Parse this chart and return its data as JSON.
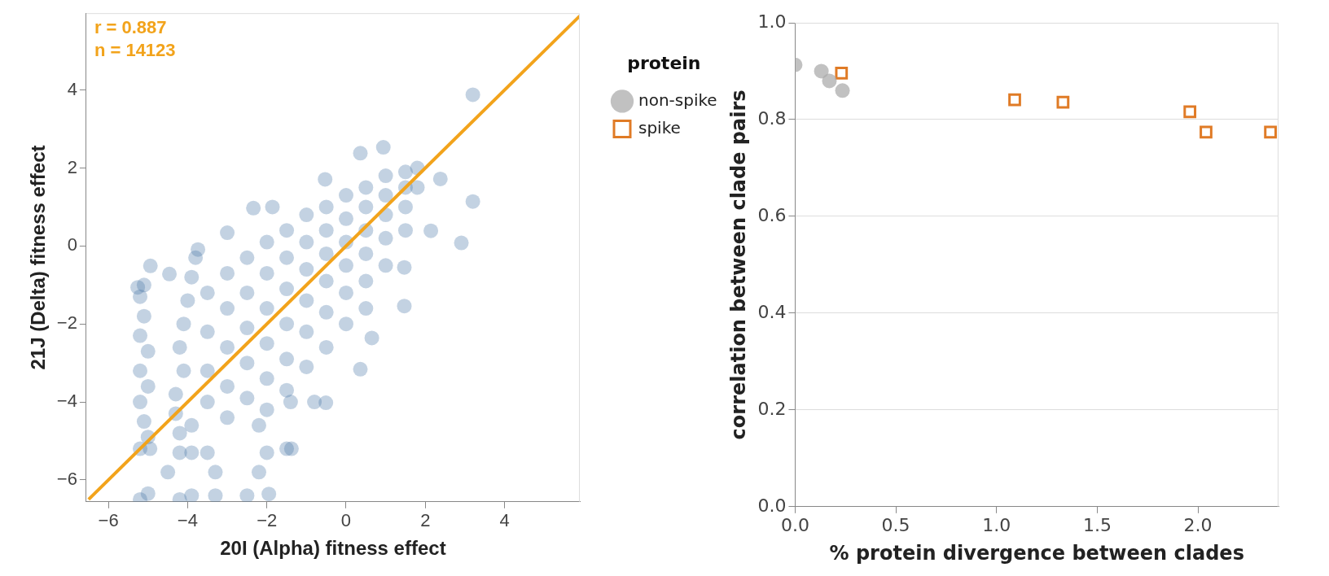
{
  "chart_data": [
    {
      "type": "scatter",
      "xlabel": "20I (Alpha) fitness effect",
      "ylabel": "21J (Delta) fitness effect",
      "annotations": [
        "r = 0.887",
        "n = 14123"
      ],
      "xlim": [
        -6.56,
        5.9
      ],
      "ylim": [
        -6.56,
        5.97
      ],
      "xticks": [
        -6,
        -4,
        -2,
        0,
        2,
        4
      ],
      "yticks": [
        -6,
        -4,
        -2,
        0,
        2,
        4
      ],
      "grid": false,
      "legend": false,
      "series": [
        {
          "marker": "circle",
          "color": "#4c78a8",
          "x": [
            -5.2,
            -5.1,
            -5.2,
            -5.0,
            -5.2,
            -5.0,
            -5.2,
            -5.1,
            -5.0,
            -5.2,
            -4.95,
            -5.1,
            -3.8,
            -3.9,
            -4.0,
            -4.1,
            -4.2,
            -4.1,
            -4.3,
            -4.3,
            -4.2,
            -4.2,
            -3.9,
            -3.5,
            -3.9,
            -3.5,
            -3.5,
            -3.5,
            -3.5,
            -3,
            -3,
            -3,
            -3,
            -3,
            -2.5,
            -2.5,
            -2.5,
            -2.5,
            -2.5,
            -2,
            -2,
            -2,
            -2,
            -2,
            -2,
            -1.5,
            -1.5,
            -1.5,
            -1.5,
            -1.5,
            -1.5,
            -1,
            -1,
            -1,
            -1,
            -1,
            -1,
            -0.5,
            -0.5,
            -0.5,
            -0.5,
            -0.5,
            -0.5,
            0,
            0,
            0,
            0,
            0,
            0,
            0.5,
            0.5,
            0.5,
            0.5,
            0.5,
            0.5,
            1,
            1,
            1,
            1,
            1,
            1.5,
            1.5,
            1.5,
            1.5,
            1.8,
            1.8,
            -5.2,
            -5.0,
            -4.5,
            -4.2,
            -3.9,
            -3.3,
            -3.3,
            -2.5,
            -2.0,
            -2.2,
            -1.4,
            -0.8,
            -1.5,
            3.2,
            0.94,
            0.36,
            -0.53,
            2.38,
            3.2,
            2.91,
            2.14,
            1.47,
            1.47,
            0.65,
            0.36,
            -0.51,
            -1.38,
            -2.2,
            -1.95,
            -4.94,
            -5.26,
            -4.46,
            -3.0,
            -2.34,
            -1.86,
            -3.74
          ],
          "values": [
            -1.3,
            -1.8,
            -2.3,
            -2.7,
            -3.2,
            -3.6,
            -4.0,
            -4.5,
            -4.9,
            -5.2,
            -5.2,
            -1.0,
            -0.3,
            -0.8,
            -1.4,
            -2.0,
            -2.6,
            -3.2,
            -3.8,
            -4.3,
            -4.8,
            -5.3,
            -5.3,
            -5.3,
            -4.6,
            -1.2,
            -2.2,
            -3.2,
            -4.0,
            -0.7,
            -1.6,
            -2.6,
            -3.6,
            -4.4,
            -0.3,
            -1.2,
            -2.1,
            -3.0,
            -3.9,
            0.1,
            -0.7,
            -1.6,
            -2.5,
            -3.4,
            -4.2,
            0.4,
            -0.3,
            -1.1,
            -2.0,
            -2.9,
            -3.7,
            0.8,
            0.1,
            -0.6,
            -1.4,
            -2.2,
            -3.1,
            1.0,
            0.4,
            -0.2,
            -0.9,
            -1.7,
            -2.6,
            1.3,
            0.7,
            0.1,
            -0.5,
            -1.2,
            -2.0,
            1.5,
            1.0,
            0.4,
            -0.2,
            -0.9,
            -1.6,
            1.8,
            1.3,
            0.8,
            0.2,
            -0.5,
            1.9,
            1.5,
            1.0,
            0.4,
            2.0,
            1.5,
            -6.5,
            -6.35,
            -5.8,
            -6.5,
            -6.4,
            -5.8,
            -6.4,
            -6.4,
            -5.3,
            -4.6,
            -4.0,
            -4.0,
            -5.2,
            3.88,
            2.53,
            2.38,
            1.71,
            1.72,
            1.14,
            0.08,
            0.39,
            -0.55,
            -1.54,
            -2.36,
            -3.16,
            -4.02,
            -5.2,
            -5.8,
            -6.36,
            -0.51,
            -1.06,
            -0.72,
            0.34,
            0.97,
            1.0,
            -0.09
          ]
        },
        {
          "type": "line",
          "marker": "none",
          "color": "#f2a31b",
          "x": [
            -6.5,
            5.9
          ],
          "values": [
            -6.5,
            5.9
          ]
        }
      ]
    },
    {
      "type": "scatter",
      "xlabel": "% protein divergence between clades",
      "ylabel": "correlation between clade pairs",
      "legend_title": "protein",
      "xlim": [
        0,
        2.4
      ],
      "ylim": [
        0,
        1
      ],
      "xticks": [
        {
          "value": 0,
          "label": "0.0"
        },
        {
          "value": 0.5,
          "label": "0.5"
        },
        {
          "value": 1,
          "label": "1.0"
        },
        {
          "value": 1.5,
          "label": "1.5"
        },
        {
          "value": 2,
          "label": "2.0"
        }
      ],
      "yticks": [
        {
          "value": 0,
          "label": "0.0"
        },
        {
          "value": 0.2,
          "label": "0.2"
        },
        {
          "value": 0.4,
          "label": "0.4"
        },
        {
          "value": 0.6,
          "label": "0.6"
        },
        {
          "value": 0.8,
          "label": "0.8"
        },
        {
          "value": 1,
          "label": "1.0"
        }
      ],
      "grid": "y",
      "legend": "left",
      "series": [
        {
          "name": "non-spike",
          "marker": "circle",
          "color": "#aaaaaa",
          "x": [
            0.0,
            0.13,
            0.17,
            0.235
          ],
          "values": [
            0.913,
            0.9,
            0.88,
            0.86
          ]
        },
        {
          "name": "spike",
          "marker": "square",
          "color": "#e07b26",
          "x": [
            0.23,
            1.09,
            1.33,
            1.96,
            2.04,
            2.36
          ],
          "values": [
            0.896,
            0.841,
            0.836,
            0.816,
            0.774,
            0.774
          ]
        }
      ]
    }
  ]
}
